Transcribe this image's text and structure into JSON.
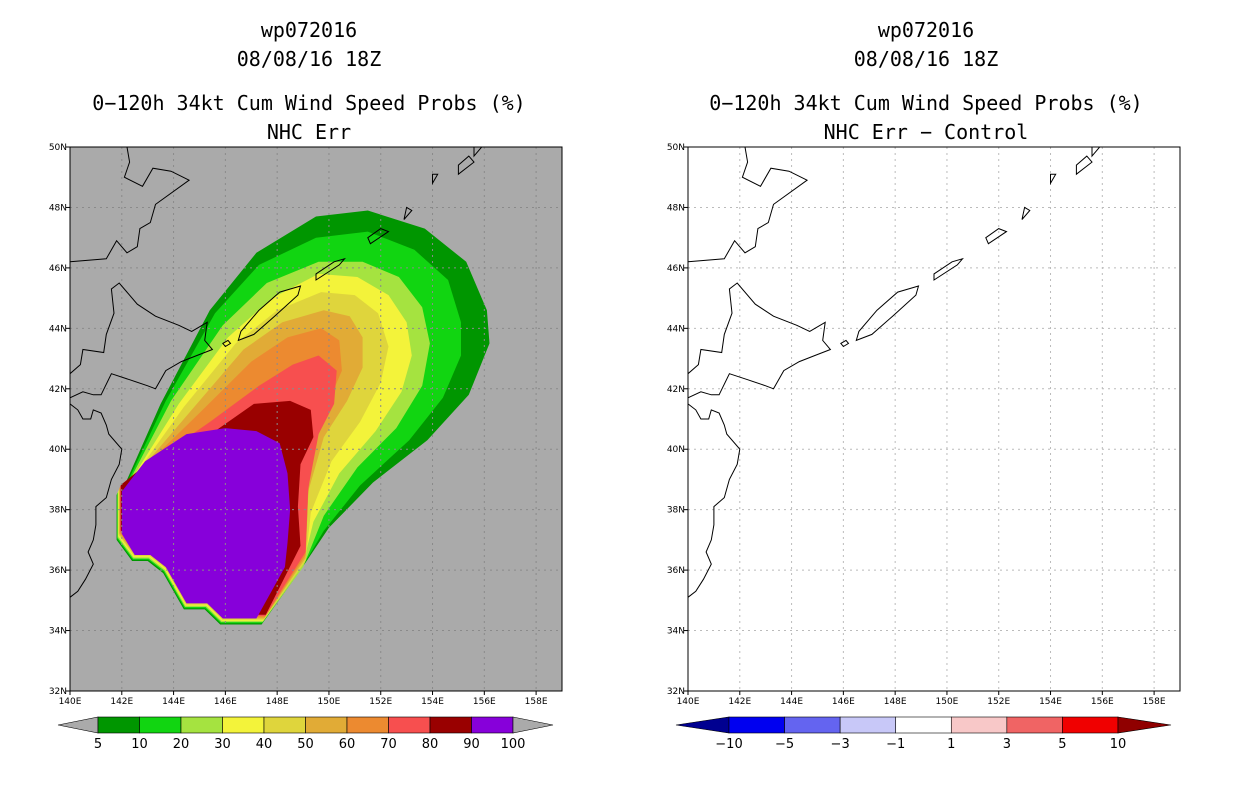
{
  "chart_data": [
    {
      "type": "heatmap",
      "title_lines": [
        "wp072016",
        "08/08/16 18Z",
        "0−120h 34kt Cum Wind Speed Probs (%)",
        "NHC Err"
      ],
      "x_ticks": [
        "140E",
        "142E",
        "144E",
        "146E",
        "148E",
        "150E",
        "152E",
        "154E",
        "156E",
        "158E"
      ],
      "y_ticks": [
        "32N",
        "34N",
        "36N",
        "38N",
        "40N",
        "42N",
        "44N",
        "46N",
        "48N",
        "50N"
      ],
      "xlim": [
        140,
        159
      ],
      "ylim": [
        32,
        50
      ],
      "grid": true,
      "background": "#aaaaaa",
      "colorbar": {
        "labels": [
          "5",
          "10",
          "20",
          "30",
          "40",
          "50",
          "60",
          "70",
          "80",
          "90",
          "100"
        ],
        "colors": [
          "#009600",
          "#11d511",
          "#a5e340",
          "#f3f33a",
          "#dfd53c",
          "#e1ab36",
          "#ec8a30",
          "#f74f4f",
          "#990000",
          "#8700da"
        ],
        "low_cap": "#aaaaaa",
        "high_cap": "#aaaaaa"
      },
      "probability_levels": [
        5,
        10,
        20,
        30,
        40,
        50,
        60,
        70,
        80,
        90,
        100
      ]
    },
    {
      "type": "heatmap",
      "title_lines": [
        "wp072016",
        "08/08/16 18Z",
        "0−120h 34kt Cum Wind Speed Probs (%)",
        "NHC Err − Control"
      ],
      "x_ticks": [
        "140E",
        "142E",
        "144E",
        "146E",
        "148E",
        "150E",
        "152E",
        "154E",
        "156E",
        "158E"
      ],
      "y_ticks": [
        "32N",
        "34N",
        "36N",
        "38N",
        "40N",
        "42N",
        "44N",
        "46N",
        "48N",
        "50N"
      ],
      "xlim": [
        140,
        159
      ],
      "ylim": [
        32,
        50
      ],
      "grid": true,
      "background": "#ffffff",
      "colorbar": {
        "labels": [
          "−10",
          "−5",
          "−3",
          "−1",
          "1",
          "3",
          "5",
          "10"
        ],
        "colors": [
          "#0000f0",
          "#6464f0",
          "#c8c8f8",
          "#ffffff",
          "#f8c8c8",
          "#f06464",
          "#f00000"
        ],
        "low_cap": "#000090",
        "high_cap": "#900000"
      },
      "difference_values": "all within ±1 (blank)"
    }
  ]
}
